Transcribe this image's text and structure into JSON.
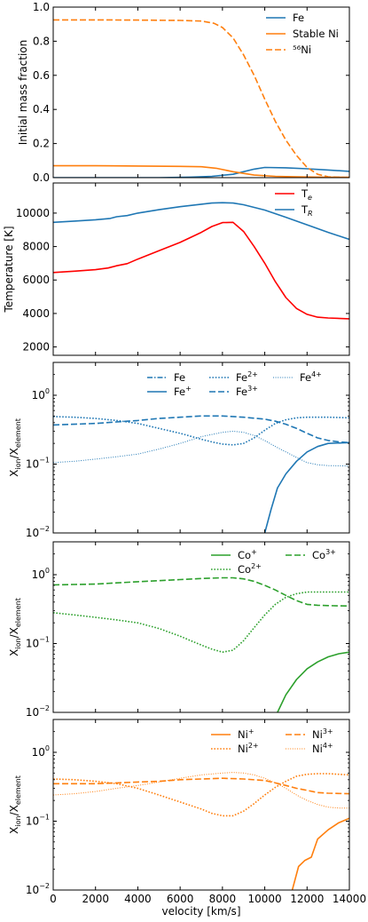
{
  "chart_data": [
    {
      "type": "line",
      "ylabel": "Initial mass fraction",
      "xlim": [
        0,
        14000
      ],
      "ylim": [
        0,
        1.0
      ],
      "yticks": [
        0.0,
        0.2,
        0.4,
        0.6,
        0.8,
        1.0
      ],
      "ytick_labels": [
        "0.0",
        "0.2",
        "0.4",
        "0.6",
        "0.8",
        "1.0"
      ],
      "legend_position": "top-right",
      "series": [
        {
          "name": "Fe",
          "color": "#1f77b4",
          "dash": "solid",
          "x": [
            0,
            5000,
            6500,
            7500,
            8500,
            9500,
            10000,
            11000,
            12000,
            13000,
            14000
          ],
          "y": [
            0,
            0,
            0.003,
            0.008,
            0.02,
            0.05,
            0.06,
            0.058,
            0.052,
            0.045,
            0.037
          ]
        },
        {
          "name": "Stable Ni",
          "color": "#ff7f0e",
          "dash": "solid",
          "x": [
            0,
            2000,
            4000,
            6000,
            7000,
            7700,
            8500,
            9500,
            10500,
            11500,
            12500,
            14000
          ],
          "y": [
            0.07,
            0.07,
            0.068,
            0.066,
            0.064,
            0.055,
            0.035,
            0.015,
            0.008,
            0.005,
            0.003,
            0.002
          ]
        },
        {
          "name": "⁵⁶Ni",
          "color": "#ff7f0e",
          "dash": "dashed",
          "x": [
            0,
            2000,
            4000,
            6000,
            7000,
            7600,
            8000,
            8500,
            9000,
            9500,
            10000,
            10500,
            11000,
            11500,
            12000,
            12500,
            13000,
            14000
          ],
          "y": [
            0.925,
            0.925,
            0.924,
            0.922,
            0.918,
            0.905,
            0.88,
            0.82,
            0.72,
            0.6,
            0.46,
            0.33,
            0.22,
            0.13,
            0.06,
            0.02,
            0.005,
            0.0
          ]
        }
      ]
    },
    {
      "type": "line",
      "ylabel": "Temperature [K]",
      "xlim": [
        0,
        14000
      ],
      "ylim": [
        1500,
        11800
      ],
      "yticks": [
        2000,
        4000,
        6000,
        8000,
        10000
      ],
      "ytick_labels": [
        "2000",
        "4000",
        "6000",
        "8000",
        "10000"
      ],
      "legend_position": "top-right",
      "series": [
        {
          "name_main": "T",
          "name_sub": "e",
          "color": "#ff0000",
          "dash": "solid",
          "x": [
            0,
            1000,
            2000,
            2600,
            3000,
            3500,
            4000,
            5000,
            6000,
            7000,
            7500,
            8000,
            8500,
            9000,
            9500,
            10000,
            10500,
            11000,
            11500,
            12000,
            12500,
            13000,
            14000
          ],
          "y": [
            6450,
            6530,
            6620,
            6720,
            6850,
            6980,
            7250,
            7750,
            8250,
            8850,
            9200,
            9430,
            9450,
            8900,
            8000,
            7000,
            5900,
            4950,
            4300,
            3950,
            3780,
            3730,
            3680
          ]
        },
        {
          "name_main": "T",
          "name_sub": "R",
          "color": "#1f77b4",
          "dash": "solid",
          "x": [
            0,
            1000,
            2000,
            2700,
            3000,
            3500,
            4000,
            5000,
            6000,
            7000,
            7500,
            8000,
            8500,
            9000,
            10000,
            11000,
            12000,
            13000,
            14000
          ],
          "y": [
            9450,
            9520,
            9600,
            9680,
            9780,
            9850,
            10000,
            10200,
            10380,
            10530,
            10600,
            10620,
            10600,
            10500,
            10180,
            9750,
            9300,
            8850,
            8430
          ]
        }
      ]
    },
    {
      "type": "line",
      "ylabel_main": "X",
      "ylabel_sub1": "ion",
      "ylabel_mid": "/X",
      "ylabel_sub2": "element",
      "yscale": "log",
      "xlim": [
        0,
        14000
      ],
      "ylim": [
        0.01,
        3
      ],
      "yticks": [
        0.01,
        0.1,
        1
      ],
      "ytick_labels": [
        "10",
        "10",
        "10"
      ],
      "ytick_exponents": [
        "−2",
        "−1",
        "0"
      ],
      "legend_position": "top-right",
      "series": [
        {
          "name_main": "Fe",
          "name_sup": "",
          "color": "#1f77b4",
          "dash": "dashdot",
          "x": [],
          "y": []
        },
        {
          "name_main": "Fe",
          "name_sup": "+",
          "color": "#1f77b4",
          "dash": "solid",
          "x": [
            10000,
            10300,
            10600,
            11000,
            11500,
            12000,
            12500,
            13000,
            14000
          ],
          "y": [
            0.01,
            0.022,
            0.045,
            0.072,
            0.11,
            0.15,
            0.18,
            0.2,
            0.205
          ]
        },
        {
          "name_main": "Fe",
          "name_sup": "2+",
          "color": "#1f77b4",
          "dash": "dotted",
          "x": [
            0,
            1000,
            2000,
            3000,
            4000,
            5000,
            6000,
            7000,
            7500,
            8000,
            8500,
            9000,
            9500,
            10000,
            10500,
            11000,
            11500,
            12000,
            13000,
            14000
          ],
          "y": [
            0.49,
            0.48,
            0.46,
            0.43,
            0.39,
            0.33,
            0.28,
            0.23,
            0.21,
            0.195,
            0.19,
            0.2,
            0.24,
            0.31,
            0.39,
            0.44,
            0.47,
            0.48,
            0.48,
            0.47
          ]
        },
        {
          "name_main": "Fe",
          "name_sup": "3+",
          "color": "#1f77b4",
          "dash": "dashed",
          "x": [
            0,
            1000,
            2000,
            3000,
            4000,
            5000,
            6000,
            7000,
            8000,
            9000,
            10000,
            10500,
            11000,
            11500,
            12000,
            12500,
            13000,
            13500,
            14000
          ],
          "y": [
            0.37,
            0.38,
            0.39,
            0.41,
            0.43,
            0.46,
            0.48,
            0.5,
            0.5,
            0.48,
            0.45,
            0.42,
            0.38,
            0.33,
            0.28,
            0.24,
            0.22,
            0.21,
            0.205
          ]
        },
        {
          "name_main": "Fe",
          "name_sup": "4+",
          "color": "#1f77b4",
          "dash": "densedot",
          "x": [
            0,
            1000,
            2000,
            3000,
            4000,
            5000,
            6000,
            7000,
            8000,
            8500,
            9000,
            9500,
            10000,
            10500,
            11000,
            11500,
            12000,
            12500,
            13000,
            14000
          ],
          "y": [
            0.105,
            0.11,
            0.118,
            0.128,
            0.14,
            0.165,
            0.2,
            0.25,
            0.29,
            0.3,
            0.29,
            0.26,
            0.22,
            0.18,
            0.15,
            0.125,
            0.105,
            0.098,
            0.095,
            0.094
          ]
        }
      ]
    },
    {
      "type": "line",
      "ylabel_main": "X",
      "ylabel_sub1": "ion",
      "ylabel_mid": "/X",
      "ylabel_sub2": "element",
      "yscale": "log",
      "xlim": [
        0,
        14000
      ],
      "ylim": [
        0.01,
        3
      ],
      "yticks": [
        0.01,
        0.1,
        1
      ],
      "ytick_labels": [
        "10",
        "10",
        "10"
      ],
      "ytick_exponents": [
        "−2",
        "−1",
        "0"
      ],
      "legend_position": "top-right",
      "series": [
        {
          "name_main": "Co",
          "name_sup": "+",
          "color": "#2ca02c",
          "dash": "solid",
          "x": [
            10600,
            11000,
            11500,
            12000,
            12500,
            13000,
            13500,
            14000
          ],
          "y": [
            0.01,
            0.018,
            0.03,
            0.043,
            0.054,
            0.064,
            0.071,
            0.075
          ]
        },
        {
          "name_main": "Co",
          "name_sup": "2+",
          "color": "#2ca02c",
          "dash": "dotted",
          "x": [
            0,
            1000,
            2000,
            3000,
            4000,
            5000,
            6000,
            6500,
            7000,
            7500,
            8000,
            8500,
            9000,
            9500,
            10000,
            10500,
            11000,
            11500,
            12000,
            13000,
            14000
          ],
          "y": [
            0.28,
            0.26,
            0.24,
            0.22,
            0.2,
            0.165,
            0.128,
            0.11,
            0.095,
            0.083,
            0.075,
            0.08,
            0.11,
            0.17,
            0.26,
            0.37,
            0.47,
            0.53,
            0.56,
            0.56,
            0.56
          ]
        },
        {
          "name_main": "Co",
          "name_sup": "3+",
          "color": "#2ca02c",
          "dash": "dashed",
          "x": [
            0,
            1000,
            2000,
            3000,
            4000,
            5000,
            6000,
            7000,
            8000,
            8500,
            9000,
            9500,
            10000,
            10500,
            11000,
            11500,
            12000,
            12500,
            13000,
            14000
          ],
          "y": [
            0.71,
            0.72,
            0.73,
            0.76,
            0.79,
            0.82,
            0.85,
            0.88,
            0.9,
            0.9,
            0.87,
            0.8,
            0.7,
            0.6,
            0.5,
            0.42,
            0.37,
            0.36,
            0.355,
            0.35
          ]
        }
      ]
    },
    {
      "type": "line",
      "ylabel_main": "X",
      "ylabel_sub1": "ion",
      "ylabel_mid": "/X",
      "ylabel_sub2": "element",
      "yscale": "log",
      "xlim": [
        0,
        14000
      ],
      "ylim": [
        0.01,
        3
      ],
      "yticks": [
        0.01,
        0.1,
        1
      ],
      "ytick_labels": [
        "10",
        "10",
        "10"
      ],
      "ytick_exponents": [
        "−2",
        "−1",
        "0"
      ],
      "xticks": [
        0,
        2000,
        4000,
        6000,
        8000,
        10000,
        12000,
        14000
      ],
      "xtick_labels": [
        "0",
        "2000",
        "4000",
        "6000",
        "8000",
        "10000",
        "12000",
        "14000"
      ],
      "xlabel": "velocity [km/s]",
      "legend_position": "top-right",
      "series": [
        {
          "name_main": "Ni",
          "name_sup": "+",
          "color": "#ff7f0e",
          "dash": "solid",
          "x": [
            11300,
            11600,
            11900,
            12200,
            12500,
            13000,
            13500,
            14000
          ],
          "y": [
            0.01,
            0.022,
            0.027,
            0.03,
            0.055,
            0.075,
            0.095,
            0.11
          ]
        },
        {
          "name_main": "Ni",
          "name_sup": "2+",
          "color": "#ff7f0e",
          "dash": "dotted",
          "x": [
            0,
            1000,
            2000,
            3000,
            4000,
            5000,
            6000,
            7000,
            7500,
            8000,
            8500,
            9000,
            9500,
            10000,
            10500,
            11000,
            11500,
            12000,
            12500,
            13000,
            14000
          ],
          "y": [
            0.41,
            0.4,
            0.38,
            0.35,
            0.3,
            0.24,
            0.19,
            0.15,
            0.13,
            0.12,
            0.12,
            0.14,
            0.18,
            0.24,
            0.31,
            0.38,
            0.45,
            0.48,
            0.49,
            0.49,
            0.47
          ]
        },
        {
          "name_main": "Ni",
          "name_sup": "3+",
          "color": "#ff7f0e",
          "dash": "dashed",
          "x": [
            0,
            1000,
            2000,
            3000,
            4000,
            5000,
            6000,
            7000,
            8000,
            9000,
            10000,
            10500,
            11000,
            11500,
            12000,
            12500,
            13000,
            14000
          ],
          "y": [
            0.35,
            0.35,
            0.35,
            0.36,
            0.37,
            0.38,
            0.4,
            0.41,
            0.42,
            0.41,
            0.39,
            0.36,
            0.33,
            0.3,
            0.28,
            0.26,
            0.255,
            0.25
          ]
        },
        {
          "name_main": "Ni",
          "name_sup": "4+",
          "color": "#ff7f0e",
          "dash": "densedot",
          "x": [
            0,
            1000,
            2000,
            3000,
            4000,
            5000,
            6000,
            7000,
            8000,
            8500,
            9000,
            9500,
            10000,
            10500,
            11000,
            11500,
            12000,
            12500,
            13000,
            13500,
            14000
          ],
          "y": [
            0.24,
            0.25,
            0.27,
            0.3,
            0.33,
            0.37,
            0.42,
            0.47,
            0.5,
            0.51,
            0.5,
            0.47,
            0.42,
            0.36,
            0.3,
            0.24,
            0.2,
            0.175,
            0.16,
            0.155,
            0.155
          ]
        }
      ]
    }
  ]
}
